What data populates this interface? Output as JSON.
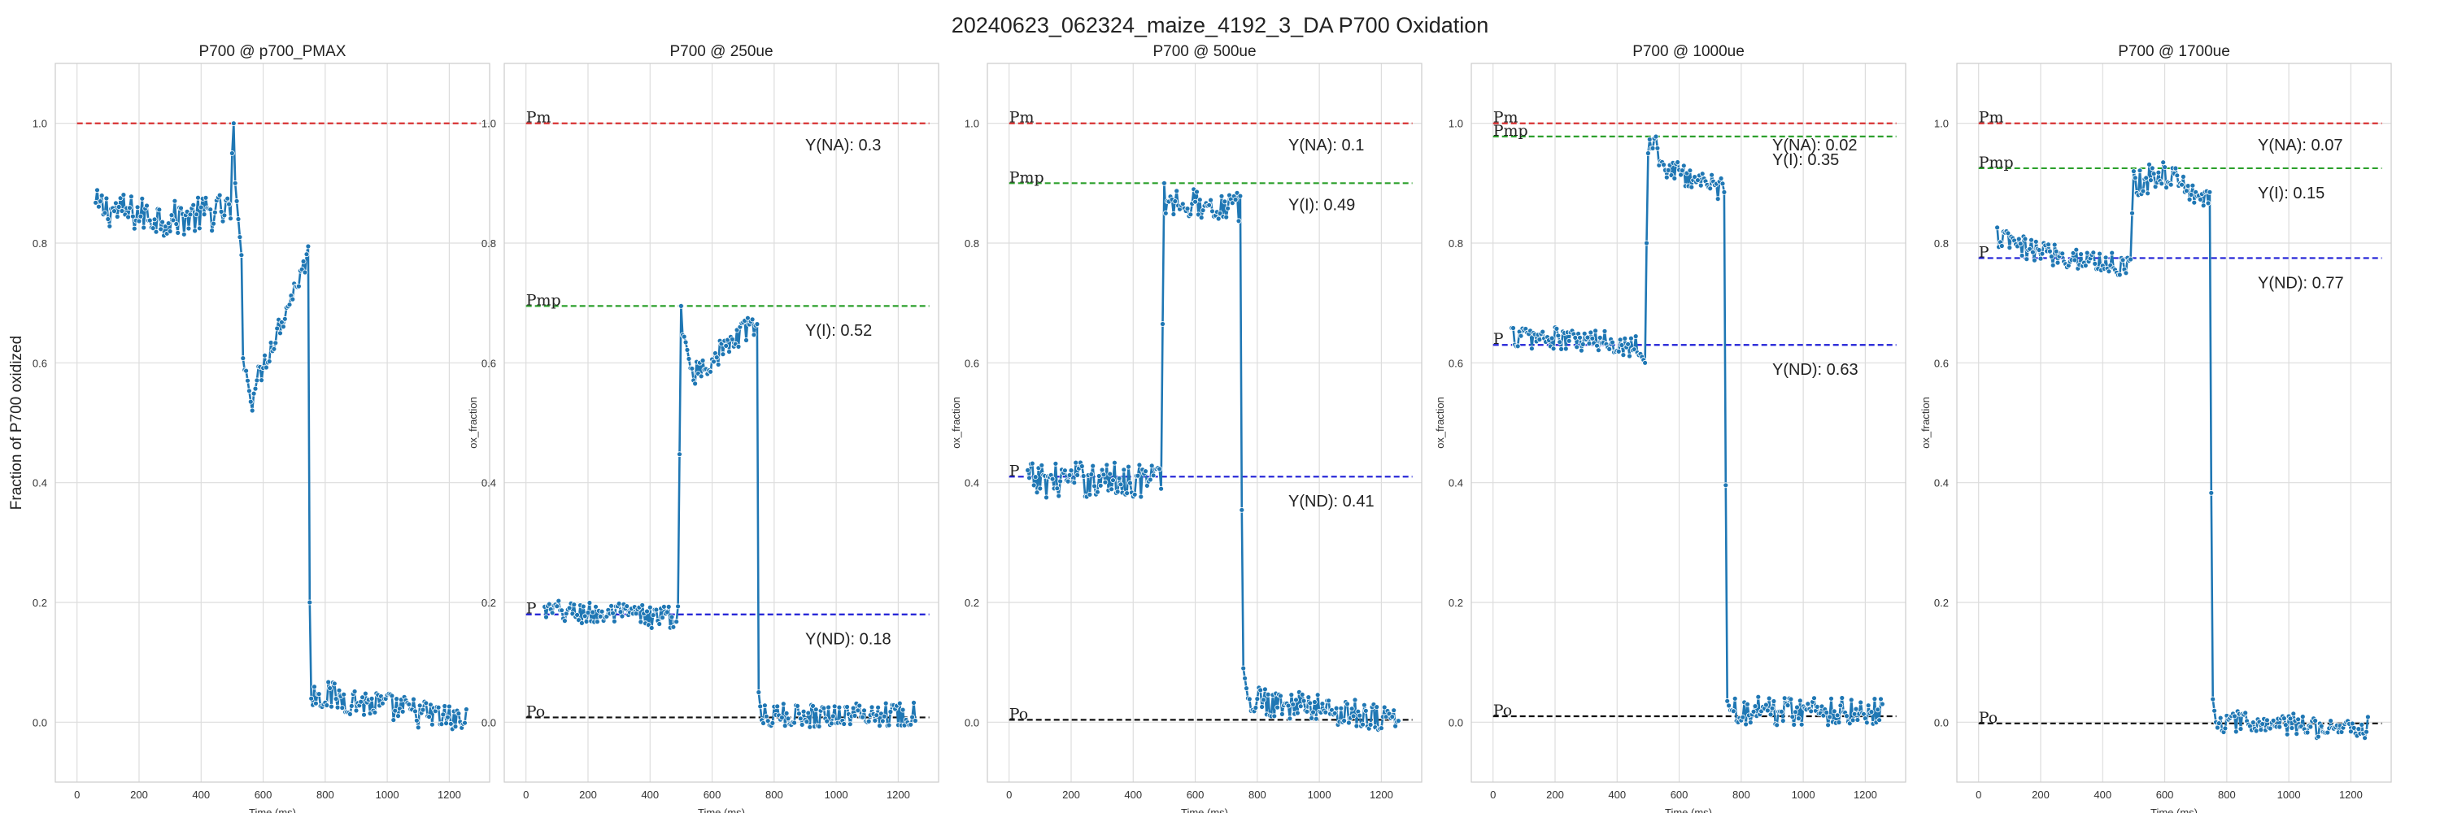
{
  "figure": {
    "suptitle": "20240623_062324_maize_4192_3_DA P700 Oxidation"
  },
  "chart_data": [
    {
      "type": "line",
      "title": "P700 @ p700_PMAX",
      "xlabel": "Time (ms)",
      "ylabel": "Fraction of P700 oxidized",
      "xlim": [
        -70,
        1330
      ],
      "ylim": [
        -0.1,
        1.1
      ],
      "xticks": [
        0,
        200,
        400,
        600,
        800,
        1000,
        1200
      ],
      "yticks": [
        0.0,
        0.2,
        0.4,
        0.6,
        0.8,
        1.0
      ],
      "grid": true,
      "trace": {
        "color": "#1f77b4",
        "marker": "o",
        "x_start": 60,
        "x_end": 1255,
        "point_count": 240,
        "segments": [
          {
            "x": [
              60,
              300
            ],
            "y": [
              0.86,
              0.84
            ],
            "noise": 0.03
          },
          {
            "x": [
              300,
              495
            ],
            "y": [
              0.84,
              0.855
            ],
            "noise": 0.03
          },
          {
            "x": [
              495,
              505
            ],
            "y": [
              0.9,
              1.0
            ],
            "noise": 0.0
          },
          {
            "x": [
              505,
              530
            ],
            "y": [
              0.93,
              0.78
            ],
            "noise": 0.0
          },
          {
            "x": [
              530,
              565
            ],
            "y": [
              0.62,
              0.53
            ],
            "noise": 0.01
          },
          {
            "x": [
              565,
              745
            ],
            "y": [
              0.55,
              0.78
            ],
            "noise": 0.02
          },
          {
            "x": [
              745,
              750
            ],
            "y": [
              0.81,
              0.2
            ],
            "noise": 0.0
          },
          {
            "x": [
              750,
              1255
            ],
            "y": [
              0.05,
              0.0
            ],
            "noise": 0.025
          }
        ]
      },
      "reference_lines": [
        {
          "name": "",
          "y": 1.0,
          "color": "#d62728"
        }
      ],
      "annotations": []
    },
    {
      "type": "line",
      "title": "P700 @ 250ue",
      "xlabel": "Time (ms)",
      "ylabel": "ox_fraction",
      "xlim": [
        -70,
        1330
      ],
      "ylim": [
        -0.1,
        1.1
      ],
      "xticks": [
        0,
        200,
        400,
        600,
        800,
        1000,
        1200
      ],
      "yticks": [
        0.0,
        0.2,
        0.4,
        0.6,
        0.8,
        1.0
      ],
      "grid": true,
      "trace": {
        "color": "#1f77b4",
        "marker": "o",
        "x_start": 60,
        "x_end": 1255,
        "point_count": 240,
        "segments": [
          {
            "x": [
              60,
              490
            ],
            "y": [
              0.185,
              0.175
            ],
            "noise": 0.02
          },
          {
            "x": [
              490,
              500
            ],
            "y": [
              0.2,
              0.695
            ],
            "noise": 0.0
          },
          {
            "x": [
              500,
              540
            ],
            "y": [
              0.66,
              0.58
            ],
            "noise": 0.01
          },
          {
            "x": [
              540,
              745
            ],
            "y": [
              0.58,
              0.67
            ],
            "noise": 0.02
          },
          {
            "x": [
              745,
              750
            ],
            "y": [
              0.695,
              0.05
            ],
            "noise": 0.0
          },
          {
            "x": [
              750,
              1255
            ],
            "y": [
              0.01,
              0.015
            ],
            "noise": 0.02
          }
        ]
      },
      "reference_lines": [
        {
          "name": "Pm",
          "y": 1.0,
          "color": "#d62728"
        },
        {
          "name": "Pmp",
          "y": 0.695,
          "color": "#2ca02c"
        },
        {
          "name": "P",
          "y": 0.18,
          "color": "#1f1fd6"
        },
        {
          "name": "Po",
          "y": 0.008,
          "color": "#111111"
        }
      ],
      "annotations": [
        {
          "text": "Y(NA): 0.3",
          "x": 900,
          "y": 0.955
        },
        {
          "text": "Y(I): 0.52",
          "x": 900,
          "y": 0.645
        },
        {
          "text": "Y(ND): 0.18",
          "x": 900,
          "y": 0.13
        }
      ]
    },
    {
      "type": "line",
      "title": "P700 @ 500ue",
      "xlabel": "Time (ms)",
      "ylabel": "ox_fraction",
      "xlim": [
        -70,
        1330
      ],
      "ylim": [
        -0.1,
        1.1
      ],
      "xticks": [
        0,
        200,
        400,
        600,
        800,
        1000,
        1200
      ],
      "yticks": [
        0.0,
        0.2,
        0.4,
        0.6,
        0.8,
        1.0
      ],
      "grid": true,
      "trace": {
        "color": "#1f77b4",
        "marker": "o",
        "x_start": 60,
        "x_end": 1255,
        "point_count": 240,
        "segments": [
          {
            "x": [
              60,
              490
            ],
            "y": [
              0.405,
              0.405
            ],
            "noise": 0.03
          },
          {
            "x": [
              490,
              500
            ],
            "y": [
              0.43,
              0.9
            ],
            "noise": 0.0
          },
          {
            "x": [
              500,
              745
            ],
            "y": [
              0.87,
              0.86
            ],
            "noise": 0.025
          },
          {
            "x": [
              745,
              752
            ],
            "y": [
              0.84,
              0.16
            ],
            "noise": 0.0
          },
          {
            "x": [
              752,
              770
            ],
            "y": [
              0.1,
              0.04
            ],
            "noise": 0.0
          },
          {
            "x": [
              770,
              1255
            ],
            "y": [
              0.04,
              0.005
            ],
            "noise": 0.025
          }
        ]
      },
      "reference_lines": [
        {
          "name": "Pm",
          "y": 1.0,
          "color": "#d62728"
        },
        {
          "name": "Pmp",
          "y": 0.9,
          "color": "#2ca02c"
        },
        {
          "name": "P",
          "y": 0.41,
          "color": "#1f1fd6"
        },
        {
          "name": "Po",
          "y": 0.004,
          "color": "#111111"
        }
      ],
      "annotations": [
        {
          "text": "Y(NA): 0.1",
          "x": 900,
          "y": 0.955
        },
        {
          "text": "Y(I): 0.49",
          "x": 900,
          "y": 0.855
        },
        {
          "text": "Y(ND): 0.41",
          "x": 900,
          "y": 0.36
        }
      ]
    },
    {
      "type": "line",
      "title": "P700 @ 1000ue",
      "xlabel": "Time (ms)",
      "ylabel": "ox_fraction",
      "xlim": [
        -70,
        1330
      ],
      "ylim": [
        -0.1,
        1.1
      ],
      "xticks": [
        0,
        200,
        400,
        600,
        800,
        1000,
        1200
      ],
      "yticks": [
        0.0,
        0.2,
        0.4,
        0.6,
        0.8,
        1.0
      ],
      "grid": true,
      "trace": {
        "color": "#1f77b4",
        "marker": "o",
        "x_start": 60,
        "x_end": 1255,
        "point_count": 240,
        "segments": [
          {
            "x": [
              60,
              470
            ],
            "y": [
              0.645,
              0.63
            ],
            "noise": 0.02
          },
          {
            "x": [
              470,
              490
            ],
            "y": [
              0.62,
              0.6
            ],
            "noise": 0.0
          },
          {
            "x": [
              490,
              500
            ],
            "y": [
              0.65,
              0.95
            ],
            "noise": 0.0
          },
          {
            "x": [
              500,
              530
            ],
            "y": [
              0.96,
              0.97
            ],
            "noise": 0.015
          },
          {
            "x": [
              530,
              745
            ],
            "y": [
              0.93,
              0.89
            ],
            "noise": 0.02
          },
          {
            "x": [
              745,
              752
            ],
            "y": [
              0.86,
              0.21
            ],
            "noise": 0.0
          },
          {
            "x": [
              752,
              765
            ],
            "y": [
              0.04,
              0.02
            ],
            "noise": 0.0
          },
          {
            "x": [
              765,
              1255
            ],
            "y": [
              0.02,
              0.02
            ],
            "noise": 0.025
          }
        ]
      },
      "reference_lines": [
        {
          "name": "Pm",
          "y": 1.0,
          "color": "#d62728"
        },
        {
          "name": "Pmp",
          "y": 0.978,
          "color": "#2ca02c"
        },
        {
          "name": "P",
          "y": 0.63,
          "color": "#1f1fd6"
        },
        {
          "name": "Po",
          "y": 0.01,
          "color": "#111111"
        }
      ],
      "annotations": [
        {
          "text": "Y(NA): 0.02",
          "x": 900,
          "y": 0.955
        },
        {
          "text": "Y(I): 0.35",
          "x": 900,
          "y": 0.93
        },
        {
          "text": "Y(ND): 0.63",
          "x": 900,
          "y": 0.58
        }
      ]
    },
    {
      "type": "line",
      "title": "P700 @ 1700ue",
      "xlabel": "Time (ms)",
      "ylabel": "ox_fraction",
      "xlim": [
        -70,
        1330
      ],
      "ylim": [
        -0.1,
        1.1
      ],
      "xticks": [
        0,
        200,
        400,
        600,
        800,
        1000,
        1200
      ],
      "yticks": [
        0.0,
        0.2,
        0.4,
        0.6,
        0.8,
        1.0
      ],
      "grid": true,
      "trace": {
        "color": "#1f77b4",
        "marker": "o",
        "x_start": 60,
        "x_end": 1255,
        "point_count": 240,
        "segments": [
          {
            "x": [
              60,
              150
            ],
            "y": [
              0.81,
              0.79
            ],
            "noise": 0.02
          },
          {
            "x": [
              150,
              490
            ],
            "y": [
              0.79,
              0.76
            ],
            "noise": 0.02
          },
          {
            "x": [
              490,
              500
            ],
            "y": [
              0.78,
              0.92
            ],
            "noise": 0.0
          },
          {
            "x": [
              500,
              620
            ],
            "y": [
              0.9,
              0.92
            ],
            "noise": 0.025
          },
          {
            "x": [
              620,
              745
            ],
            "y": [
              0.91,
              0.87
            ],
            "noise": 0.02
          },
          {
            "x": [
              745,
              752
            ],
            "y": [
              0.84,
              0.2
            ],
            "noise": 0.0
          },
          {
            "x": [
              752,
              765
            ],
            "y": [
              0.05,
              0.0
            ],
            "noise": 0.0
          },
          {
            "x": [
              765,
              1255
            ],
            "y": [
              0.0,
              -0.01
            ],
            "noise": 0.02
          }
        ]
      },
      "reference_lines": [
        {
          "name": "Pm",
          "y": 1.0,
          "color": "#d62728"
        },
        {
          "name": "Pmp",
          "y": 0.925,
          "color": "#2ca02c"
        },
        {
          "name": "P",
          "y": 0.775,
          "color": "#1f1fd6"
        },
        {
          "name": "Po",
          "y": -0.002,
          "color": "#111111"
        }
      ],
      "annotations": [
        {
          "text": "Y(NA): 0.07",
          "x": 900,
          "y": 0.955
        },
        {
          "text": "Y(I): 0.15",
          "x": 900,
          "y": 0.875
        },
        {
          "text": "Y(ND): 0.77",
          "x": 900,
          "y": 0.725
        }
      ]
    }
  ]
}
